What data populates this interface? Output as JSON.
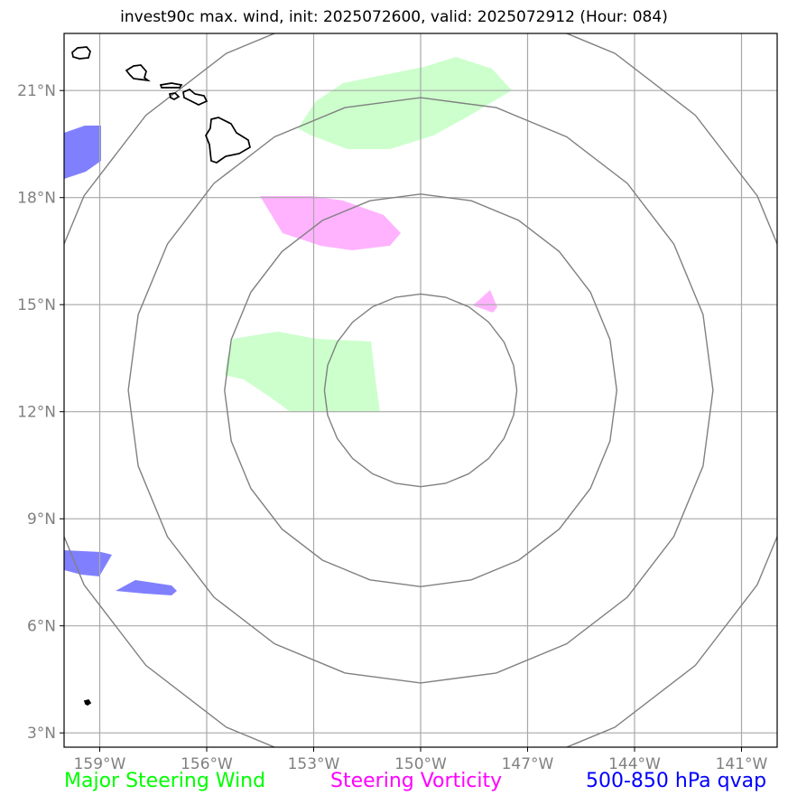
{
  "title": "invest90c max. wind, init: 2025072600, valid: 2025072912 (Hour: 084)",
  "map": {
    "lon_range": [
      -160,
      -140
    ],
    "lat_range": [
      2.6,
      22.6
    ],
    "lon_ticks": [
      -159,
      -156,
      -153,
      -150,
      -147,
      -144,
      -141
    ],
    "lon_tick_labels": [
      "159°W",
      "156°W",
      "153°W",
      "150°W",
      "147°W",
      "144°W",
      "141°W"
    ],
    "lat_ticks": [
      3,
      6,
      9,
      12,
      15,
      18,
      21
    ],
    "lat_tick_labels": [
      "3°N",
      "6°N",
      "9°N",
      "12°N",
      "15°N",
      "18°N",
      "21°N"
    ],
    "grid": true,
    "range_rings": {
      "center": [
        -150,
        12.6
      ],
      "radii_deg": [
        2.7,
        5.5,
        8.2,
        10.9
      ]
    },
    "colors": {
      "grid": "#a8a8a8",
      "rings": "#808080",
      "steering_wind": "#ccffcc",
      "steering_vorticity": "#ffb3ff",
      "qvap": "#8080ff",
      "coastline": "#000000"
    }
  },
  "legend": {
    "wind": "Major Steering Wind",
    "vorticity": "Steering Vorticity",
    "qvap": "500-850 hPa qvap",
    "wind_color": "#00ff00",
    "vorticity_color": "#ff00ff",
    "qvap_color": "#0000ff"
  }
}
